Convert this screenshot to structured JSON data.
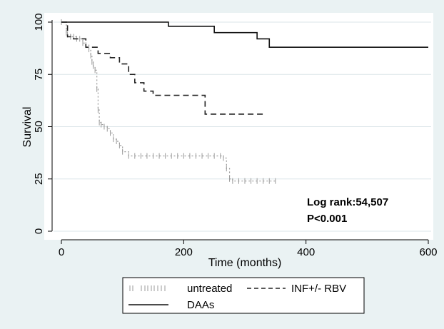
{
  "chart_data": {
    "type": "line",
    "step": true,
    "xlabel": "Time (months)",
    "ylabel": "Survival",
    "xlim": [
      0,
      600
    ],
    "ylim": [
      0,
      100
    ],
    "x_ticks": [
      0,
      200,
      400,
      600
    ],
    "y_ticks": [
      0,
      25,
      50,
      75,
      100
    ],
    "x_tick_labels": [
      "0",
      "200",
      "400",
      "600"
    ],
    "y_tick_labels": [
      "0",
      "25",
      "50",
      "75",
      "100"
    ],
    "grid": "horizontal",
    "legend_position": "bottom",
    "series": [
      {
        "name": "untreated",
        "style": "censored-ticks",
        "color": "#9a9a9a",
        "x": [
          0,
          8,
          10,
          15,
          20,
          25,
          30,
          35,
          40,
          45,
          48,
          50,
          52,
          55,
          58,
          60,
          62,
          65,
          70,
          75,
          80,
          85,
          90,
          95,
          100,
          110,
          120,
          130,
          140,
          150,
          160,
          170,
          180,
          190,
          200,
          210,
          220,
          230,
          240,
          250,
          260,
          265,
          270,
          275,
          280,
          290,
          300,
          310,
          320,
          330,
          340,
          350
        ],
        "y": [
          100,
          95,
          94,
          93,
          93,
          92,
          92,
          90,
          89,
          87,
          84,
          81,
          79,
          77,
          68,
          58,
          52,
          51,
          50,
          49,
          47,
          44,
          43,
          41,
          38,
          36,
          36,
          36,
          36,
          36,
          36,
          36,
          36,
          36,
          36,
          36,
          36,
          36,
          36,
          36,
          36,
          35,
          30,
          25,
          24,
          24,
          24,
          24,
          24,
          24,
          24,
          24
        ]
      },
      {
        "name": "INF+/- RBV",
        "style": "dashed",
        "color": "#222222",
        "x": [
          0,
          10,
          20,
          40,
          60,
          80,
          95,
          110,
          120,
          135,
          150,
          175,
          200,
          225,
          235,
          260,
          290,
          310,
          330
        ],
        "y": [
          100,
          93,
          92,
          88,
          85,
          83,
          80,
          75,
          71,
          67,
          65,
          65,
          65,
          65,
          56,
          56,
          56,
          56,
          56
        ]
      },
      {
        "name": "DAAs",
        "style": "solid",
        "color": "#111111",
        "x": [
          0,
          100,
          150,
          175,
          220,
          250,
          280,
          320,
          340,
          380,
          450,
          500,
          550,
          600
        ],
        "y": [
          100,
          100,
          100,
          98,
          98,
          95,
          95,
          92,
          88,
          88,
          88,
          88,
          88,
          88
        ]
      }
    ],
    "annotations": [
      "Log rank:54,507",
      "P<0.001"
    ]
  },
  "colors": {
    "background": "#eaf2f3",
    "plot_area": "#ffffff",
    "grid": "#dbe5e8",
    "legend_box": "#ffffff"
  }
}
